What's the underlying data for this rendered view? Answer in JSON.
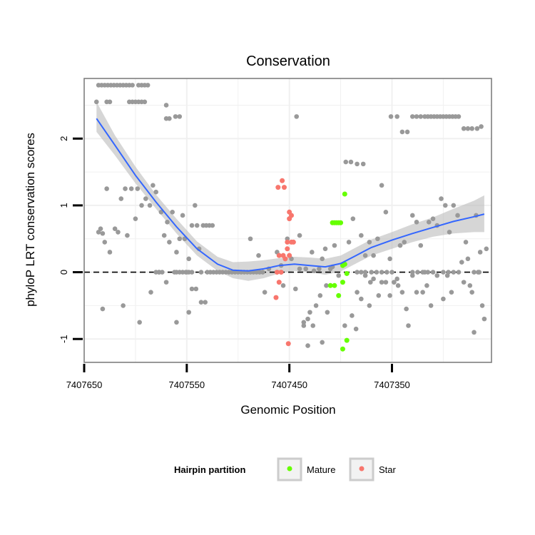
{
  "chart_data": {
    "type": "scatter",
    "title": "Conservation",
    "xlabel": "Genomic Position",
    "ylabel": "phyloP LRT conservation scores",
    "x_reversed": true,
    "xlim": [
      7407650,
      7407253
    ],
    "ylim": [
      -1.35,
      2.9
    ],
    "x_ticks": [
      7407650,
      7407550,
      7407450,
      7407350
    ],
    "x_tick_labels": [
      "7407650",
      "7407550",
      "7407450",
      "7407350"
    ],
    "y_ticks": [
      -1,
      0,
      1,
      2
    ],
    "y_tick_labels": [
      "-1",
      "0",
      "1",
      "2"
    ],
    "grid": true,
    "reference_line": {
      "y": 0,
      "style": "dashed"
    },
    "colors": {
      "other": "#999999",
      "Mature": "#66ff00",
      "Star": "#f8766d",
      "smooth": "#3366ff",
      "ribbon": "#bbbbbb"
    },
    "legend": {
      "title": "Hairpin partition",
      "entries": [
        {
          "label": "Mature",
          "color": "#66ff00"
        },
        {
          "label": "Star",
          "color": "#f8766d"
        }
      ]
    },
    "smooth": [
      {
        "x": 7407638,
        "y": 2.3,
        "lo": 2.1,
        "hi": 2.55
      },
      {
        "x": 7407620,
        "y": 1.9,
        "lo": 1.75,
        "hi": 2.05
      },
      {
        "x": 7407600,
        "y": 1.45,
        "lo": 1.33,
        "hi": 1.58
      },
      {
        "x": 7407580,
        "y": 1.05,
        "lo": 0.95,
        "hi": 1.16
      },
      {
        "x": 7407560,
        "y": 0.68,
        "lo": 0.58,
        "hi": 0.8
      },
      {
        "x": 7407540,
        "y": 0.35,
        "lo": 0.25,
        "hi": 0.46
      },
      {
        "x": 7407520,
        "y": 0.12,
        "lo": 0.02,
        "hi": 0.23
      },
      {
        "x": 7407505,
        "y": 0.03,
        "lo": -0.09,
        "hi": 0.15
      },
      {
        "x": 7407490,
        "y": 0.02,
        "lo": -0.13,
        "hi": 0.16
      },
      {
        "x": 7407475,
        "y": 0.05,
        "lo": -0.09,
        "hi": 0.18
      },
      {
        "x": 7407460,
        "y": 0.1,
        "lo": -0.02,
        "hi": 0.21
      },
      {
        "x": 7407445,
        "y": 0.12,
        "lo": 0.02,
        "hi": 0.23
      },
      {
        "x": 7407430,
        "y": 0.1,
        "lo": 0.0,
        "hi": 0.22
      },
      {
        "x": 7407415,
        "y": 0.08,
        "lo": -0.04,
        "hi": 0.2
      },
      {
        "x": 7407400,
        "y": 0.13,
        "lo": 0.01,
        "hi": 0.25
      },
      {
        "x": 7407385,
        "y": 0.25,
        "lo": 0.13,
        "hi": 0.37
      },
      {
        "x": 7407370,
        "y": 0.37,
        "lo": 0.25,
        "hi": 0.49
      },
      {
        "x": 7407350,
        "y": 0.48,
        "lo": 0.35,
        "hi": 0.6
      },
      {
        "x": 7407330,
        "y": 0.58,
        "lo": 0.45,
        "hi": 0.72
      },
      {
        "x": 7407310,
        "y": 0.67,
        "lo": 0.53,
        "hi": 0.82
      },
      {
        "x": 7407290,
        "y": 0.76,
        "lo": 0.58,
        "hi": 0.95
      },
      {
        "x": 7407270,
        "y": 0.83,
        "lo": 0.6,
        "hi": 1.07
      },
      {
        "x": 7407260,
        "y": 0.87,
        "lo": 0.6,
        "hi": 1.15
      }
    ],
    "points_other": [
      [
        7407636,
        2.8
      ],
      [
        7407633,
        2.8
      ],
      [
        7407630,
        2.8
      ],
      [
        7407627,
        2.8
      ],
      [
        7407624,
        2.8
      ],
      [
        7407621,
        2.8
      ],
      [
        7407618,
        2.8
      ],
      [
        7407615,
        2.8
      ],
      [
        7407612,
        2.8
      ],
      [
        7407609,
        2.8
      ],
      [
        7407606,
        2.8
      ],
      [
        7407603,
        2.8
      ],
      [
        7407597,
        2.8
      ],
      [
        7407594,
        2.8
      ],
      [
        7407591,
        2.8
      ],
      [
        7407588,
        2.8
      ],
      [
        7407638,
        2.55
      ],
      [
        7407628,
        2.55
      ],
      [
        7407625,
        2.55
      ],
      [
        7407606,
        2.55
      ],
      [
        7407603,
        2.55
      ],
      [
        7407600,
        2.55
      ],
      [
        7407597,
        2.55
      ],
      [
        7407594,
        2.55
      ],
      [
        7407591,
        2.55
      ],
      [
        7407570,
        2.5
      ],
      [
        7407570,
        2.3
      ],
      [
        7407567,
        2.3
      ],
      [
        7407561,
        2.33
      ],
      [
        7407557,
        2.33
      ],
      [
        7407636,
        0.6
      ],
      [
        7407634,
        0.65
      ],
      [
        7407632,
        0.58
      ],
      [
        7407630,
        0.45
      ],
      [
        7407628,
        1.25
      ],
      [
        7407625,
        0.3
      ],
      [
        7407620,
        0.65
      ],
      [
        7407617,
        0.6
      ],
      [
        7407614,
        1.1
      ],
      [
        7407610,
        1.25
      ],
      [
        7407608,
        0.55
      ],
      [
        7407604,
        1.25
      ],
      [
        7407600,
        0.8
      ],
      [
        7407598,
        1.25
      ],
      [
        7407594,
        1.0
      ],
      [
        7407590,
        1.1
      ],
      [
        7407586,
        1.0
      ],
      [
        7407583,
        1.3
      ],
      [
        7407580,
        1.2
      ],
      [
        7407577,
        0.0
      ],
      [
        7407575,
        0.9
      ],
      [
        7407572,
        0.55
      ],
      [
        7407569,
        0.75
      ],
      [
        7407567,
        0.45
      ],
      [
        7407564,
        0.9
      ],
      [
        7407562,
        0.0
      ],
      [
        7407560,
        0.3
      ],
      [
        7407557,
        0.5
      ],
      [
        7407554,
        0.85
      ],
      [
        7407552,
        0.5
      ],
      [
        7407550,
        0.0
      ],
      [
        7407548,
        0.2
      ],
      [
        7407545,
        0.7
      ],
      [
        7407542,
        1.0
      ],
      [
        7407540,
        0.7
      ],
      [
        7407538,
        0.35
      ],
      [
        7407536,
        0.0
      ],
      [
        7407534,
        0.7
      ],
      [
        7407531,
        0.7
      ],
      [
        7407528,
        0.7
      ],
      [
        7407525,
        0.7
      ],
      [
        7407632,
        -0.55
      ],
      [
        7407612,
        -0.5
      ],
      [
        7407596,
        -0.75
      ],
      [
        7407585,
        -0.3
      ],
      [
        7407570,
        -0.15
      ],
      [
        7407560,
        -0.75
      ],
      [
        7407548,
        -0.6
      ],
      [
        7407545,
        -0.25
      ],
      [
        7407541,
        -0.25
      ],
      [
        7407536,
        -0.45
      ],
      [
        7407532,
        -0.45
      ],
      [
        7407580,
        0.0
      ],
      [
        7407577,
        0.0
      ],
      [
        7407574,
        0.0
      ],
      [
        7407560,
        0.0
      ],
      [
        7407557,
        0.0
      ],
      [
        7407554,
        0.0
      ],
      [
        7407551,
        0.0
      ],
      [
        7407548,
        0.0
      ],
      [
        7407545,
        0.0
      ],
      [
        7407530,
        0.0
      ],
      [
        7407527,
        0.0
      ],
      [
        7407524,
        0.0
      ],
      [
        7407521,
        0.0
      ],
      [
        7407518,
        0.0
      ],
      [
        7407515,
        0.0
      ],
      [
        7407512,
        0.0
      ],
      [
        7407509,
        0.0
      ],
      [
        7407506,
        0.0
      ],
      [
        7407503,
        0.0
      ],
      [
        7407500,
        0.0
      ],
      [
        7407497,
        0.0
      ],
      [
        7407494,
        0.0
      ],
      [
        7407491,
        0.0
      ],
      [
        7407488,
        0.0
      ],
      [
        7407485,
        0.0
      ],
      [
        7407482,
        0.0
      ],
      [
        7407479,
        0.0
      ],
      [
        7407476,
        0.0
      ],
      [
        7407488,
        0.5
      ],
      [
        7407480,
        0.25
      ],
      [
        7407474,
        -0.3
      ],
      [
        7407470,
        0.05
      ],
      [
        7407462,
        0.3
      ],
      [
        7407458,
        0.1
      ],
      [
        7407456,
        -0.2
      ],
      [
        7407452,
        0.5
      ],
      [
        7407448,
        0.2
      ],
      [
        7407444,
        -0.25
      ],
      [
        7407440,
        0.05
      ],
      [
        7407436,
        -0.75
      ],
      [
        7407432,
        -0.7
      ],
      [
        7407428,
        0.3
      ],
      [
        7407424,
        -0.5
      ],
      [
        7407420,
        -0.35
      ],
      [
        7407418,
        0.2
      ],
      [
        7407414,
        -0.2
      ],
      [
        7407410,
        0.05
      ],
      [
        7407406,
        0.4
      ],
      [
        7407402,
        -0.05
      ],
      [
        7407398,
        0.1
      ],
      [
        7407396,
        -0.8
      ],
      [
        7407443,
        2.33
      ],
      [
        7407436,
        -0.8
      ],
      [
        7407432,
        -1.1
      ],
      [
        7407430,
        -0.6
      ],
      [
        7407427,
        -0.8
      ],
      [
        7407418,
        -1.05
      ],
      [
        7407413,
        -0.6
      ],
      [
        7407395,
        1.65
      ],
      [
        7407390,
        1.65
      ],
      [
        7407384,
        1.62
      ],
      [
        7407378,
        1.62
      ],
      [
        7407372,
        -0.5
      ],
      [
        7407440,
        0.55
      ],
      [
        7407434,
        0.05
      ],
      [
        7407426,
        0.02
      ],
      [
        7407421,
        0.05
      ],
      [
        7407415,
        0.35
      ],
      [
        7407408,
        0.08
      ],
      [
        7407392,
        0.45
      ],
      [
        7407388,
        0.8
      ],
      [
        7407384,
        -0.3
      ],
      [
        7407380,
        0.55
      ],
      [
        7407376,
        0.25
      ],
      [
        7407372,
        0.45
      ],
      [
        7407368,
        0.25
      ],
      [
        7407364,
        0.5
      ],
      [
        7407360,
        1.3
      ],
      [
        7407356,
        0.9
      ],
      [
        7407352,
        0.2
      ],
      [
        7407348,
        -0.15
      ],
      [
        7407344,
        -0.2
      ],
      [
        7407342,
        0.4
      ],
      [
        7407338,
        0.45
      ],
      [
        7407334,
        -0.8
      ],
      [
        7407330,
        0.85
      ],
      [
        7407326,
        0.75
      ],
      [
        7407322,
        0.4
      ],
      [
        7407318,
        0.0
      ],
      [
        7407314,
        0.75
      ],
      [
        7407310,
        0.8
      ],
      [
        7407306,
        0.7
      ],
      [
        7407302,
        1.1
      ],
      [
        7407298,
        1.0
      ],
      [
        7407294,
        0.6
      ],
      [
        7407290,
        1.0
      ],
      [
        7407286,
        0.85
      ],
      [
        7407282,
        0.15
      ],
      [
        7407280,
        -0.15
      ],
      [
        7407278,
        0.45
      ],
      [
        7407276,
        0.2
      ],
      [
        7407274,
        -0.2
      ],
      [
        7407272,
        -0.3
      ],
      [
        7407270,
        -0.9
      ],
      [
        7407268,
        0.85
      ],
      [
        7407266,
        0.0
      ],
      [
        7407264,
        0.3
      ],
      [
        7407262,
        -0.5
      ],
      [
        7407260,
        -0.7
      ],
      [
        7407258,
        0.35
      ],
      [
        7407389,
        -0.65
      ],
      [
        7407385,
        -0.85
      ],
      [
        7407380,
        -0.4
      ],
      [
        7407376,
        -0.05
      ],
      [
        7407371,
        -0.15
      ],
      [
        7407368,
        -0.1
      ],
      [
        7407363,
        -0.35
      ],
      [
        7407360,
        -0.15
      ],
      [
        7407356,
        -0.15
      ],
      [
        7407352,
        -0.35
      ],
      [
        7407348,
        -0.15
      ],
      [
        7407345,
        -0.1
      ],
      [
        7407340,
        -0.3
      ],
      [
        7407336,
        -0.55
      ],
      [
        7407330,
        -0.05
      ],
      [
        7407326,
        -0.3
      ],
      [
        7407320,
        -0.3
      ],
      [
        7407316,
        -0.2
      ],
      [
        7407312,
        -0.5
      ],
      [
        7407306,
        -0.05
      ],
      [
        7407300,
        -0.4
      ],
      [
        7407296,
        -0.05
      ],
      [
        7407292,
        -0.3
      ],
      [
        7407351,
        2.33
      ],
      [
        7407345,
        2.33
      ],
      [
        7407340,
        2.1
      ],
      [
        7407335,
        2.1
      ],
      [
        7407330,
        2.33
      ],
      [
        7407326,
        2.33
      ],
      [
        7407322,
        2.33
      ],
      [
        7407318,
        2.33
      ],
      [
        7407315,
        2.33
      ],
      [
        7407312,
        2.33
      ],
      [
        7407309,
        2.33
      ],
      [
        7407306,
        2.33
      ],
      [
        7407303,
        2.33
      ],
      [
        7407300,
        2.33
      ],
      [
        7407297,
        2.33
      ],
      [
        7407294,
        2.33
      ],
      [
        7407291,
        2.33
      ],
      [
        7407288,
        2.33
      ],
      [
        7407285,
        2.33
      ],
      [
        7407280,
        2.15
      ],
      [
        7407276,
        2.15
      ],
      [
        7407272,
        2.15
      ],
      [
        7407267,
        2.15
      ],
      [
        7407263,
        2.18
      ],
      [
        7407384,
        0.0
      ],
      [
        7407380,
        0.0
      ],
      [
        7407376,
        0.0
      ],
      [
        7407370,
        0.0
      ],
      [
        7407365,
        0.0
      ],
      [
        7407360,
        0.0
      ],
      [
        7407355,
        0.0
      ],
      [
        7407350,
        0.0
      ],
      [
        7407330,
        0.0
      ],
      [
        7407325,
        0.0
      ],
      [
        7407320,
        0.0
      ],
      [
        7407315,
        0.0
      ],
      [
        7407310,
        0.0
      ],
      [
        7407300,
        0.0
      ],
      [
        7407295,
        0.0
      ],
      [
        7407290,
        0.0
      ],
      [
        7407285,
        0.0
      ],
      [
        7407270,
        0.0
      ],
      [
        7407265,
        0.0
      ]
    ],
    "points_mature": [
      [
        7407396,
        1.17
      ],
      [
        7407408,
        0.74
      ],
      [
        7407406,
        0.74
      ],
      [
        7407404,
        0.74
      ],
      [
        7407402,
        0.74
      ],
      [
        7407400,
        0.74
      ],
      [
        7407396,
        0.12
      ],
      [
        7407394,
        -0.02
      ],
      [
        7407398,
        0.1
      ],
      [
        7407410,
        -0.2
      ],
      [
        7407406,
        -0.2
      ],
      [
        7407402,
        -0.35
      ],
      [
        7407398,
        -0.15
      ],
      [
        7407394,
        -1.02
      ],
      [
        7407398,
        -1.15
      ]
    ],
    "points_star": [
      [
        7407461,
        1.27
      ],
      [
        7407457,
        1.37
      ],
      [
        7407455,
        1.27
      ],
      [
        7407450,
        0.9
      ],
      [
        7407448,
        0.85
      ],
      [
        7407450,
        0.8
      ],
      [
        7407452,
        0.45
      ],
      [
        7407448,
        0.45
      ],
      [
        7407446,
        0.45
      ],
      [
        7407452,
        0.35
      ],
      [
        7407456,
        0.25
      ],
      [
        7407460,
        0.25
      ],
      [
        7407454,
        0.2
      ],
      [
        7407450,
        0.25
      ],
      [
        7407462,
        0.0
      ],
      [
        7407458,
        0.0
      ],
      [
        7407460,
        -0.15
      ],
      [
        7407463,
        -0.38
      ],
      [
        7407451,
        -1.07
      ]
    ]
  }
}
